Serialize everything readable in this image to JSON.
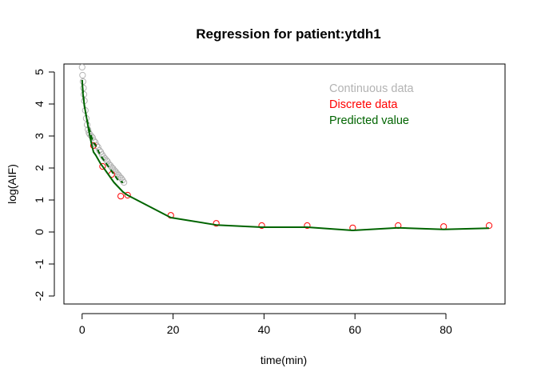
{
  "chart_data": {
    "type": "scatter",
    "title": "Regression for patient:ytdh1",
    "xlabel": "time(min)",
    "ylabel": "log(AIF)",
    "xlim": [
      -4,
      93
    ],
    "ylim": [
      -2.25,
      5.25
    ],
    "x_ticks": [
      "0",
      "20",
      "40",
      "60",
      "80"
    ],
    "y_ticks": [
      "-2",
      "-1",
      "0",
      "1",
      "2",
      "3",
      "4",
      "5"
    ],
    "grid": false,
    "legend_position": "top-right",
    "legend": [
      {
        "label": "Continuous data",
        "color": "#b3b3b3"
      },
      {
        "label": "Discrete data",
        "color": "#ff0000"
      },
      {
        "label": "Predicted value",
        "color": "#006400"
      }
    ],
    "series": [
      {
        "name": "Continuous data",
        "type": "scatter",
        "marker": "open-circle",
        "color": "#b3b3b3",
        "x": [
          0.0,
          0.1,
          0.2,
          0.3,
          0.4,
          0.5,
          0.7,
          0.9,
          1.1,
          1.3,
          1.5,
          1.7,
          2.0,
          2.3,
          2.6,
          2.9,
          3.2,
          3.5,
          3.8,
          4.1,
          4.4,
          4.7,
          5.0,
          5.3,
          5.6,
          5.9,
          6.2,
          6.5,
          6.8,
          7.1,
          7.4,
          7.7,
          8.0,
          8.3,
          8.6,
          8.9,
          9.2
        ],
        "y": [
          5.15,
          4.9,
          4.7,
          4.5,
          4.3,
          4.1,
          3.8,
          3.55,
          3.35,
          3.2,
          3.1,
          3.05,
          3.0,
          2.95,
          2.85,
          2.8,
          2.7,
          2.65,
          2.55,
          2.5,
          2.42,
          2.35,
          2.3,
          2.25,
          2.2,
          2.12,
          2.08,
          2.02,
          1.98,
          1.92,
          1.88,
          1.82,
          1.78,
          1.72,
          1.68,
          1.62,
          1.55
        ]
      },
      {
        "name": "Discrete data",
        "type": "scatter",
        "marker": "open-circle",
        "color": "#ff0000",
        "x": [
          2.5,
          4.5,
          6.5,
          8.5,
          10.0,
          19.5,
          29.5,
          39.5,
          49.5,
          59.5,
          69.5,
          79.5,
          89.5
        ],
        "y": [
          2.7,
          2.05,
          1.8,
          1.12,
          1.15,
          0.52,
          0.27,
          0.2,
          0.2,
          0.13,
          0.2,
          0.17,
          0.2
        ]
      },
      {
        "name": "Predicted value",
        "type": "line",
        "color": "#006400",
        "x": [
          0.0,
          0.2,
          0.5,
          1.0,
          1.5,
          2.0,
          2.5,
          3.0,
          4.0,
          5.0,
          6.0,
          7.0,
          8.0,
          9.0,
          10.0,
          19.5,
          29.5,
          39.5,
          49.5,
          59.5,
          69.5,
          79.5,
          89.5
        ],
        "y": [
          4.75,
          4.3,
          3.95,
          3.55,
          3.15,
          2.8,
          2.5,
          2.4,
          2.15,
          1.95,
          1.75,
          1.55,
          1.4,
          1.25,
          1.15,
          0.45,
          0.22,
          0.15,
          0.15,
          0.05,
          0.13,
          0.08,
          0.12
        ]
      },
      {
        "name": "Predicted value (continuous fit)",
        "type": "dashed-line",
        "color": "#006400",
        "x": [
          0.0,
          0.2,
          0.5,
          1.0,
          1.5,
          2.0,
          2.5,
          3.0,
          4.0,
          5.0,
          6.0,
          7.0,
          8.0,
          9.0
        ],
        "y": [
          4.75,
          4.35,
          3.95,
          3.55,
          3.25,
          3.0,
          2.8,
          2.7,
          2.4,
          2.2,
          2.0,
          1.8,
          1.6,
          1.55
        ]
      }
    ]
  }
}
